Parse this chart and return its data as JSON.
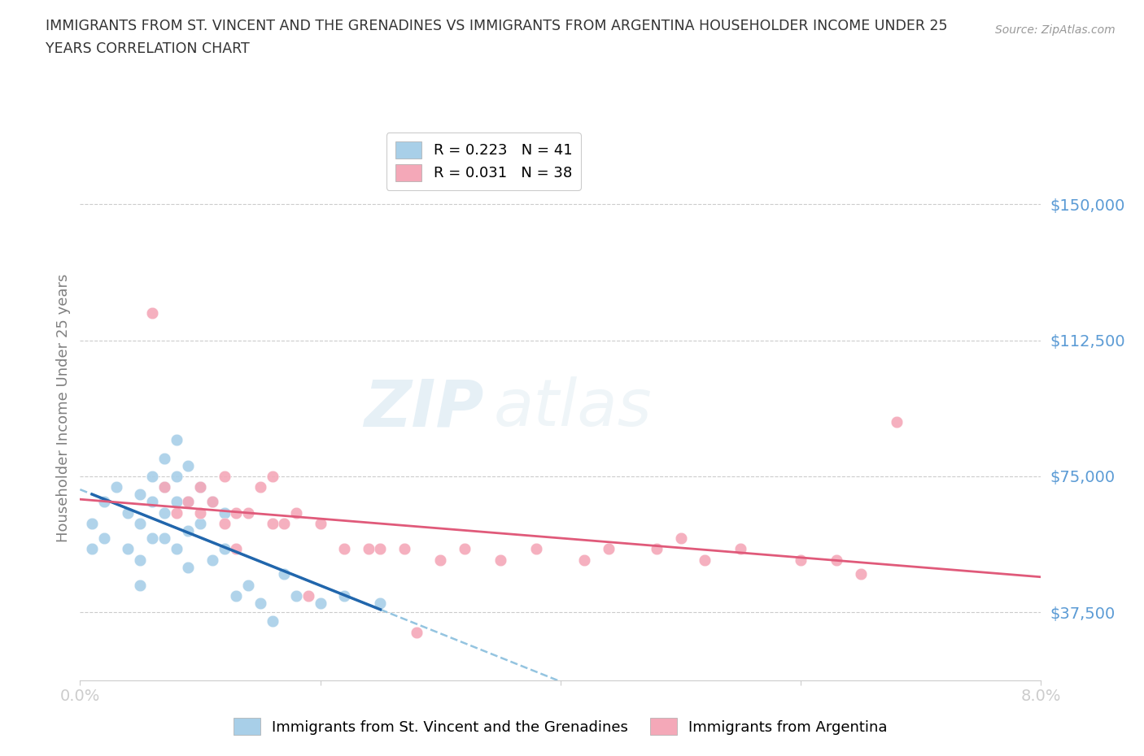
{
  "title_line1": "IMMIGRANTS FROM ST. VINCENT AND THE GRENADINES VS IMMIGRANTS FROM ARGENTINA HOUSEHOLDER INCOME UNDER 25",
  "title_line2": "YEARS CORRELATION CHART",
  "source": "Source: ZipAtlas.com",
  "ylabel": "Householder Income Under 25 years",
  "xlim": [
    0.0,
    0.08
  ],
  "ylim": [
    18750,
    168750
  ],
  "yticks": [
    37500,
    75000,
    112500,
    150000
  ],
  "ytick_labels": [
    "$37,500",
    "$75,000",
    "$112,500",
    "$150,000"
  ],
  "xticks": [
    0.0,
    0.02,
    0.04,
    0.06,
    0.08
  ],
  "xtick_labels": [
    "0.0%",
    "",
    "",
    "",
    "8.0%"
  ],
  "legend_label1": "R = 0.223   N = 41",
  "legend_label2": "R = 0.031   N = 38",
  "legend_label_bottom1": "Immigrants from St. Vincent and the Grenadines",
  "legend_label_bottom2": "Immigrants from Argentina",
  "color_blue": "#a8cfe8",
  "color_pink": "#f4a8b8",
  "color_blue_line": "#2166ac",
  "color_pink_line": "#e05a7a",
  "color_blue_dash": "#88bedd",
  "color_axis_labels": "#5b9bd5",
  "watermark_text": "ZIP",
  "watermark_text2": "atlas",
  "blue_x": [
    0.001,
    0.001,
    0.002,
    0.002,
    0.003,
    0.004,
    0.004,
    0.005,
    0.005,
    0.005,
    0.005,
    0.006,
    0.006,
    0.006,
    0.007,
    0.007,
    0.007,
    0.007,
    0.008,
    0.008,
    0.008,
    0.008,
    0.009,
    0.009,
    0.009,
    0.009,
    0.01,
    0.01,
    0.011,
    0.011,
    0.012,
    0.012,
    0.013,
    0.014,
    0.015,
    0.016,
    0.017,
    0.018,
    0.02,
    0.022,
    0.025
  ],
  "blue_y": [
    62000,
    55000,
    68000,
    58000,
    72000,
    65000,
    55000,
    70000,
    62000,
    52000,
    45000,
    75000,
    68000,
    58000,
    80000,
    72000,
    65000,
    58000,
    85000,
    75000,
    68000,
    55000,
    78000,
    68000,
    60000,
    50000,
    72000,
    62000,
    68000,
    52000,
    65000,
    55000,
    42000,
    45000,
    40000,
    35000,
    48000,
    42000,
    40000,
    42000,
    40000
  ],
  "pink_x": [
    0.006,
    0.007,
    0.008,
    0.009,
    0.01,
    0.01,
    0.011,
    0.012,
    0.012,
    0.013,
    0.013,
    0.014,
    0.015,
    0.016,
    0.017,
    0.018,
    0.019,
    0.02,
    0.022,
    0.024,
    0.025,
    0.027,
    0.028,
    0.03,
    0.032,
    0.035,
    0.038,
    0.042,
    0.044,
    0.048,
    0.05,
    0.052,
    0.055,
    0.06,
    0.063,
    0.065,
    0.068,
    0.016
  ],
  "pink_y": [
    120000,
    72000,
    65000,
    68000,
    72000,
    65000,
    68000,
    75000,
    62000,
    65000,
    55000,
    65000,
    72000,
    62000,
    62000,
    65000,
    42000,
    62000,
    55000,
    55000,
    55000,
    55000,
    32000,
    52000,
    55000,
    52000,
    55000,
    52000,
    55000,
    55000,
    58000,
    52000,
    55000,
    52000,
    52000,
    48000,
    90000,
    75000
  ]
}
